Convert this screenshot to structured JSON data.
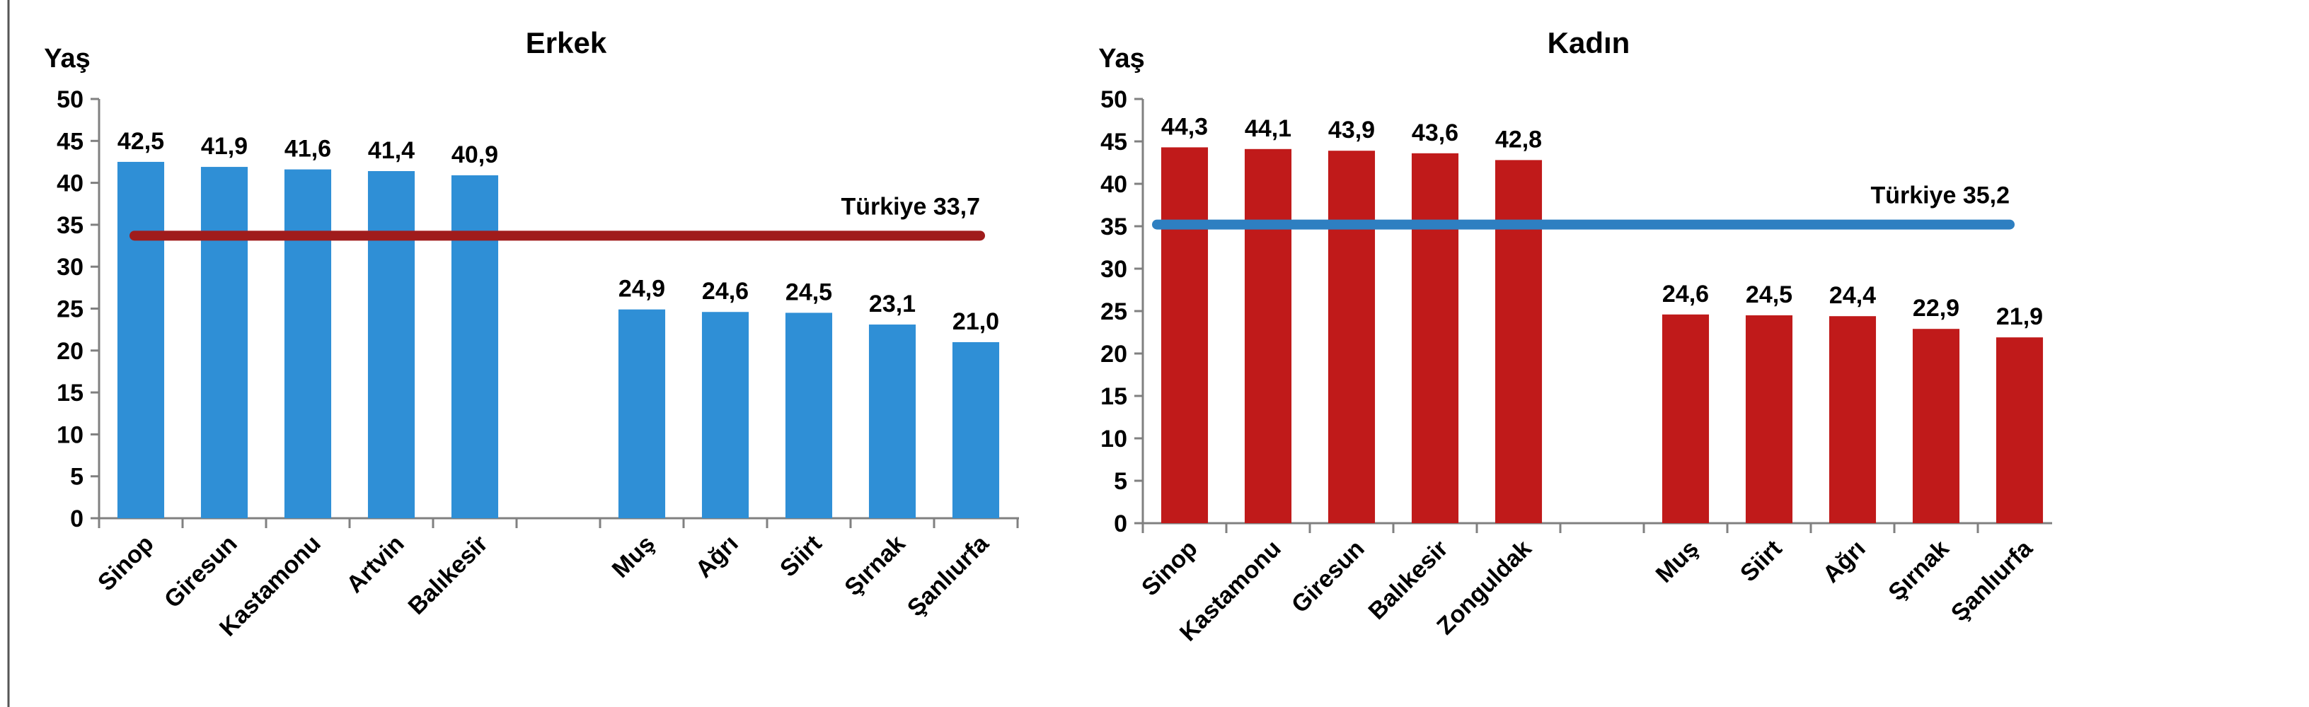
{
  "chart_data": [
    {
      "type": "bar",
      "title": "Erkek",
      "ylabel": "Yaş",
      "ylim": [
        0,
        50
      ],
      "yticks": [
        0,
        5,
        10,
        15,
        20,
        25,
        30,
        35,
        40,
        45,
        50
      ],
      "categories": [
        "Sinop",
        "Giresun",
        "Kastamonu",
        "Artvin",
        "Balıkesir",
        "",
        "Muş",
        "Ağrı",
        "Siirt",
        "Şırnak",
        "Şanlıurfa"
      ],
      "values": [
        42.5,
        41.9,
        41.6,
        41.4,
        40.9,
        null,
        24.9,
        24.6,
        24.5,
        23.1,
        21.0
      ],
      "value_labels": [
        "42,5",
        "41,9",
        "41,6",
        "41,4",
        "40,9",
        "",
        "24,9",
        "24,6",
        "24,5",
        "23,1",
        "21,0"
      ],
      "reference_line": {
        "label": "Türkiye 33,7",
        "value": 33.7,
        "color": "#a01c1c"
      },
      "bar_color": "#2f8fd6",
      "grid": false
    },
    {
      "type": "bar",
      "title": "Kadın",
      "ylabel": "Yaş",
      "ylim": [
        0,
        50
      ],
      "yticks": [
        0,
        5,
        10,
        15,
        20,
        25,
        30,
        35,
        40,
        45,
        50
      ],
      "categories": [
        "Sinop",
        "Kastamonu",
        "Giresun",
        "Balıkesir",
        "Zonguldak",
        "",
        "Muş",
        "Siirt",
        "Ağrı",
        "Şırnak",
        "Şanlıurfa"
      ],
      "values": [
        44.3,
        44.1,
        43.9,
        43.6,
        42.8,
        null,
        24.6,
        24.5,
        24.4,
        22.9,
        21.9
      ],
      "value_labels": [
        "44,3",
        "44,1",
        "43,9",
        "43,6",
        "42,8",
        "",
        "24,6",
        "24,5",
        "24,4",
        "22,9",
        "21,9"
      ],
      "reference_line": {
        "label": "Türkiye 35,2",
        "value": 35.2,
        "color": "#2e7fc1"
      },
      "bar_color": "#c01a1a",
      "grid": false
    }
  ]
}
